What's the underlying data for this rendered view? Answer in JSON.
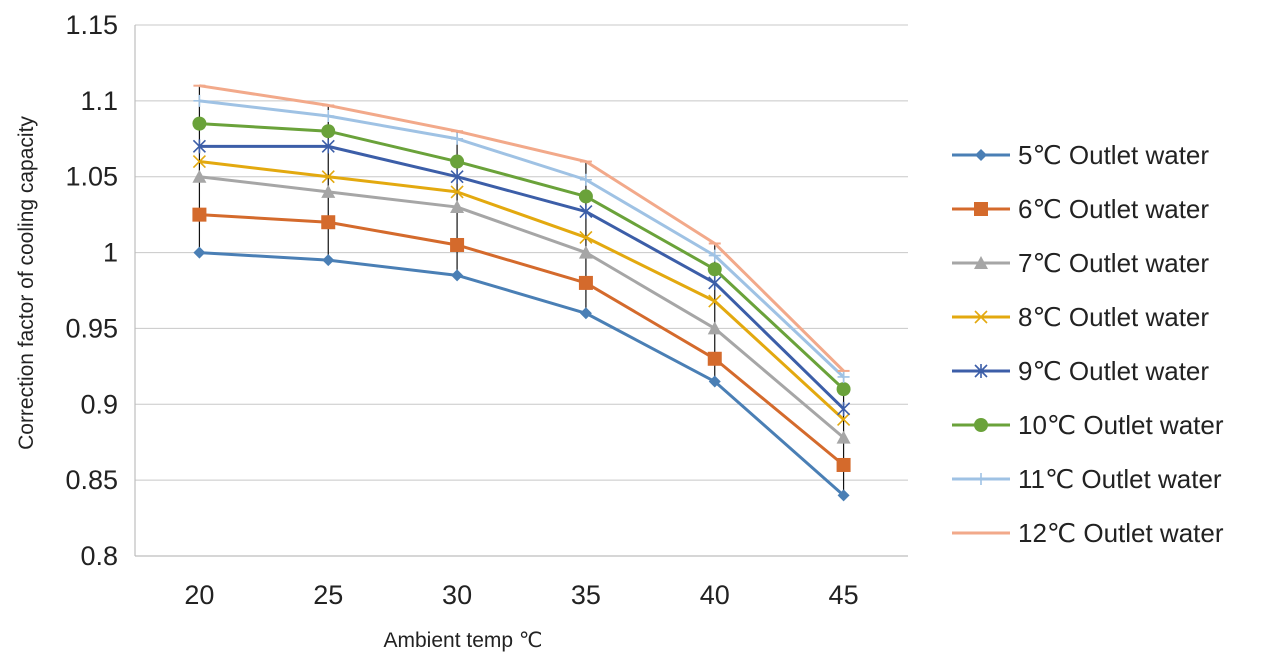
{
  "chart_data": {
    "type": "line",
    "xlabel": "Ambient temp ℃",
    "ylabel": "Correction factor of cooling capacity",
    "x": [
      20,
      25,
      30,
      35,
      40,
      45
    ],
    "ylim": [
      0.8,
      1.15
    ],
    "yticks": [
      "0.8",
      "0.85",
      "0.9",
      "0.95",
      "1",
      "1.05",
      "1.1",
      "1.15"
    ],
    "grid": true,
    "legend_position": "right",
    "series": [
      {
        "name": "5℃ Outlet water",
        "color": "#4a7fb5",
        "marker": "diamond",
        "values": [
          1.0,
          0.995,
          0.985,
          0.96,
          0.915,
          0.84
        ]
      },
      {
        "name": "6℃ Outlet water",
        "color": "#d46a2c",
        "marker": "square",
        "values": [
          1.025,
          1.02,
          1.005,
          0.98,
          0.93,
          0.86
        ]
      },
      {
        "name": "7℃ Outlet water",
        "color": "#a6a6a6",
        "marker": "triangle",
        "values": [
          1.05,
          1.04,
          1.03,
          1.0,
          0.95,
          0.878
        ]
      },
      {
        "name": "8℃ Outlet water",
        "color": "#e3a90f",
        "marker": "x",
        "values": [
          1.06,
          1.05,
          1.04,
          1.01,
          0.968,
          0.89
        ]
      },
      {
        "name": "9℃ Outlet water",
        "color": "#3c5ea8",
        "marker": "star",
        "values": [
          1.07,
          1.07,
          1.05,
          1.027,
          0.98,
          0.897
        ]
      },
      {
        "name": "10℃ Outlet water",
        "color": "#6aa23a",
        "marker": "circle",
        "values": [
          1.085,
          1.08,
          1.06,
          1.037,
          0.989,
          0.91
        ]
      },
      {
        "name": "11℃ Outlet water",
        "color": "#9fc2e4",
        "marker": "plus",
        "values": [
          1.1,
          1.09,
          1.075,
          1.048,
          0.998,
          0.918
        ]
      },
      {
        "name": "12℃ Outlet water",
        "color": "#f2a98a",
        "marker": "dash",
        "values": [
          1.11,
          1.097,
          1.08,
          1.06,
          1.006,
          0.922
        ]
      }
    ]
  }
}
